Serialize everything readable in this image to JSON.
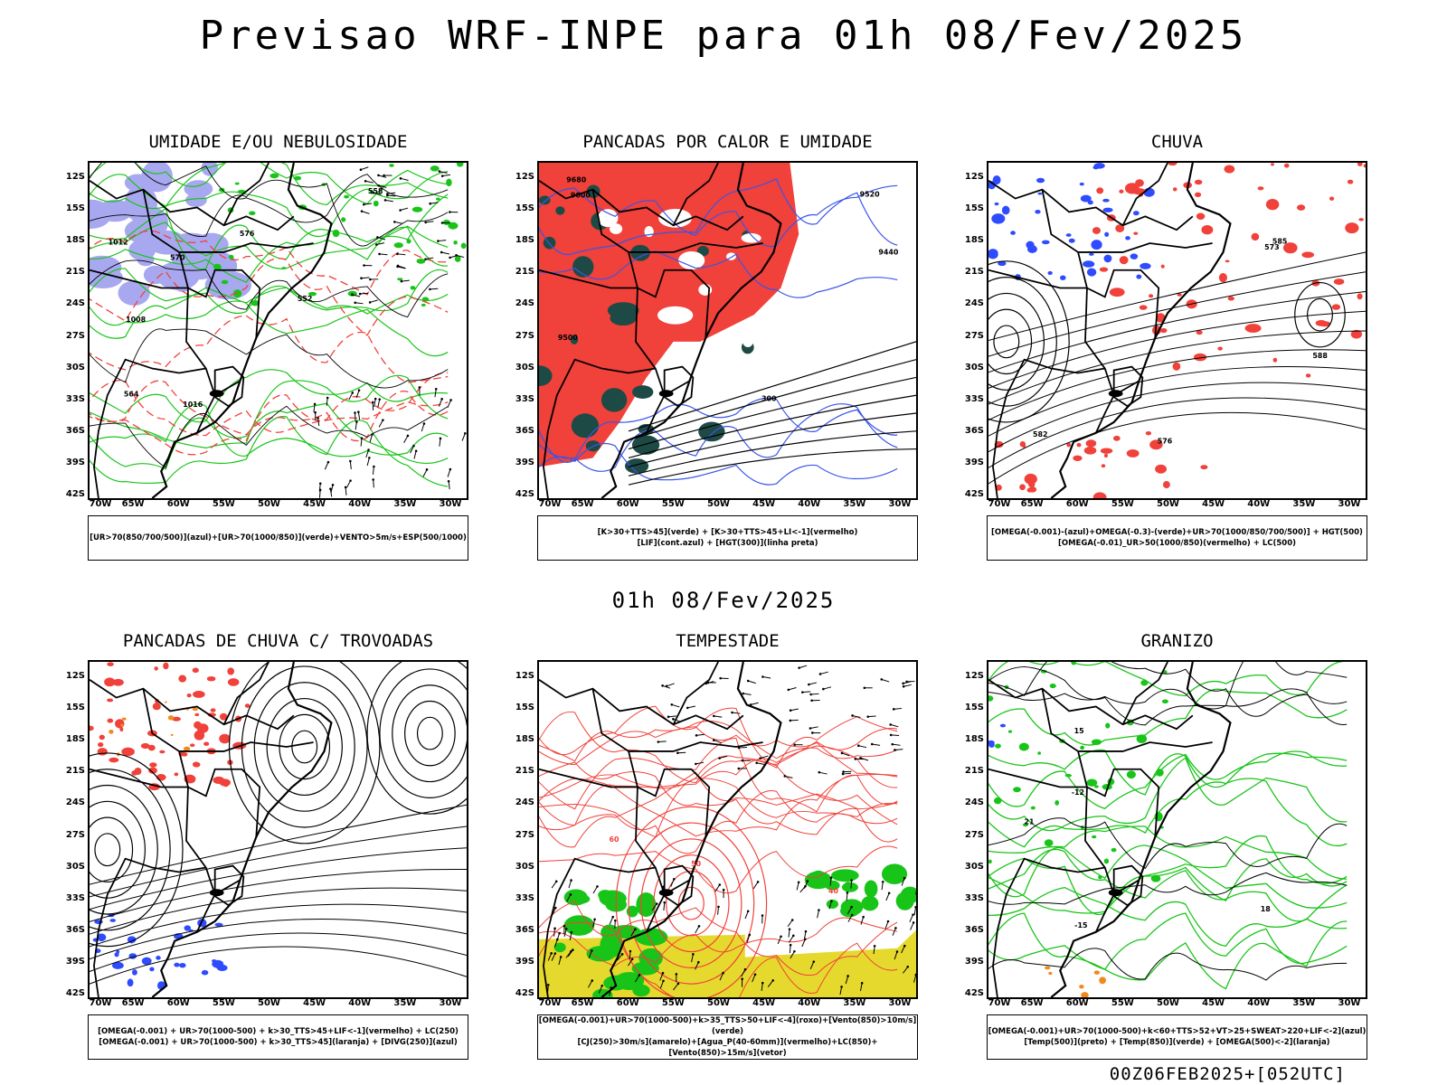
{
  "header": {
    "title": "Previsao WRF-INPE  para 01h 08/Fev/2025",
    "mid_date": "01h 08/Fev/2025",
    "run_stamp": "00Z06FEB2025+[052UTC]"
  },
  "axes": {
    "lat_labels": [
      "12S",
      "15S",
      "18S",
      "21S",
      "24S",
      "27S",
      "30S",
      "33S",
      "36S",
      "39S",
      "42S"
    ],
    "lon_labels": [
      "70W",
      "65W",
      "60W",
      "55W",
      "50W",
      "45W",
      "40W",
      "35W",
      "30W"
    ]
  },
  "colors": {
    "red": "#f0413a",
    "green": "#19c419",
    "blue": "#2f4bff",
    "lavender": "#a8a8f0",
    "dark_teal": "#1e4a45",
    "yellow": "#e6d92e",
    "orange": "#f08a1e",
    "purple": "#b01fd0"
  },
  "panels": [
    {
      "title": "UMIDADE E/OU NEBULOSIDADE",
      "legend": [
        "[UR>70(850/700/500)](azul)+[UR>70(1000/850)](verde)+VENTO>5m/s+ESP(500/1000)"
      ],
      "contour_labels": [
        "1012",
        "1016",
        "1008",
        "576",
        "570",
        "564",
        "558",
        "552"
      ]
    },
    {
      "title": "PANCADAS POR CALOR E UMIDADE",
      "legend": [
        "[K>30+TTS>45](verde) + [K>30+TTS>45+LI<-1](vermelho)",
        "[LIF](cont.azul) + [HGT(300)](linha preta)"
      ],
      "contour_labels": [
        "9600",
        "9680",
        "9500",
        "9520",
        "9440",
        "300"
      ]
    },
    {
      "title": "CHUVA",
      "legend": [
        "[OMEGA(-0.001)-(azul)+OMEGA(-0.3)-(verde)+UR>70(1000/850/700/500)] + HGT(500)",
        "[OMEGA(-0.01)_UR>50(1000/850)(vermelho) + LC(500)"
      ],
      "contour_labels": [
        "582",
        "585",
        "588",
        "576",
        "573"
      ]
    },
    {
      "title": "PANCADAS DE CHUVA C/ TROVOADAS",
      "legend": [
        "[OMEGA(-0.001) + UR>70(1000-500) + k>30_TTS>45+LIF<-1](vermelho) + LC(250)",
        "[OMEGA(-0.001) + UR>70(1000-500) + k>30_TTS>45](laranja) + [DIVG(250)](azul)"
      ],
      "contour_labels": []
    },
    {
      "title": "TEMPESTADE",
      "legend": [
        "[OMEGA(-0.001)+UR>70(1000-500)+k>35_TTS>50+LIF<-4](roxo)+[Vento(850)>10m/s](verde)",
        "[CJ(250)>30m/s](amarelo)+[Agua_P(40-60mm)](vermelho)+LC(850)+[Vento(850)>15m/s](vetor)"
      ],
      "contour_labels": [
        "60",
        "50",
        "40"
      ]
    },
    {
      "title": "GRANIZO",
      "legend": [
        "[OMEGA(-0.001)+UR>70(1000-500)+k<60+TTS>52+VT>25+SWEAT>220+LIF<-2](azul)",
        "[Temp(500)](preto) + [Temp(850)](verde) + [OMEGA(500)<-2](laranja)"
      ],
      "contour_labels": [
        "-12",
        "-15",
        "18",
        "21",
        "15"
      ]
    }
  ]
}
